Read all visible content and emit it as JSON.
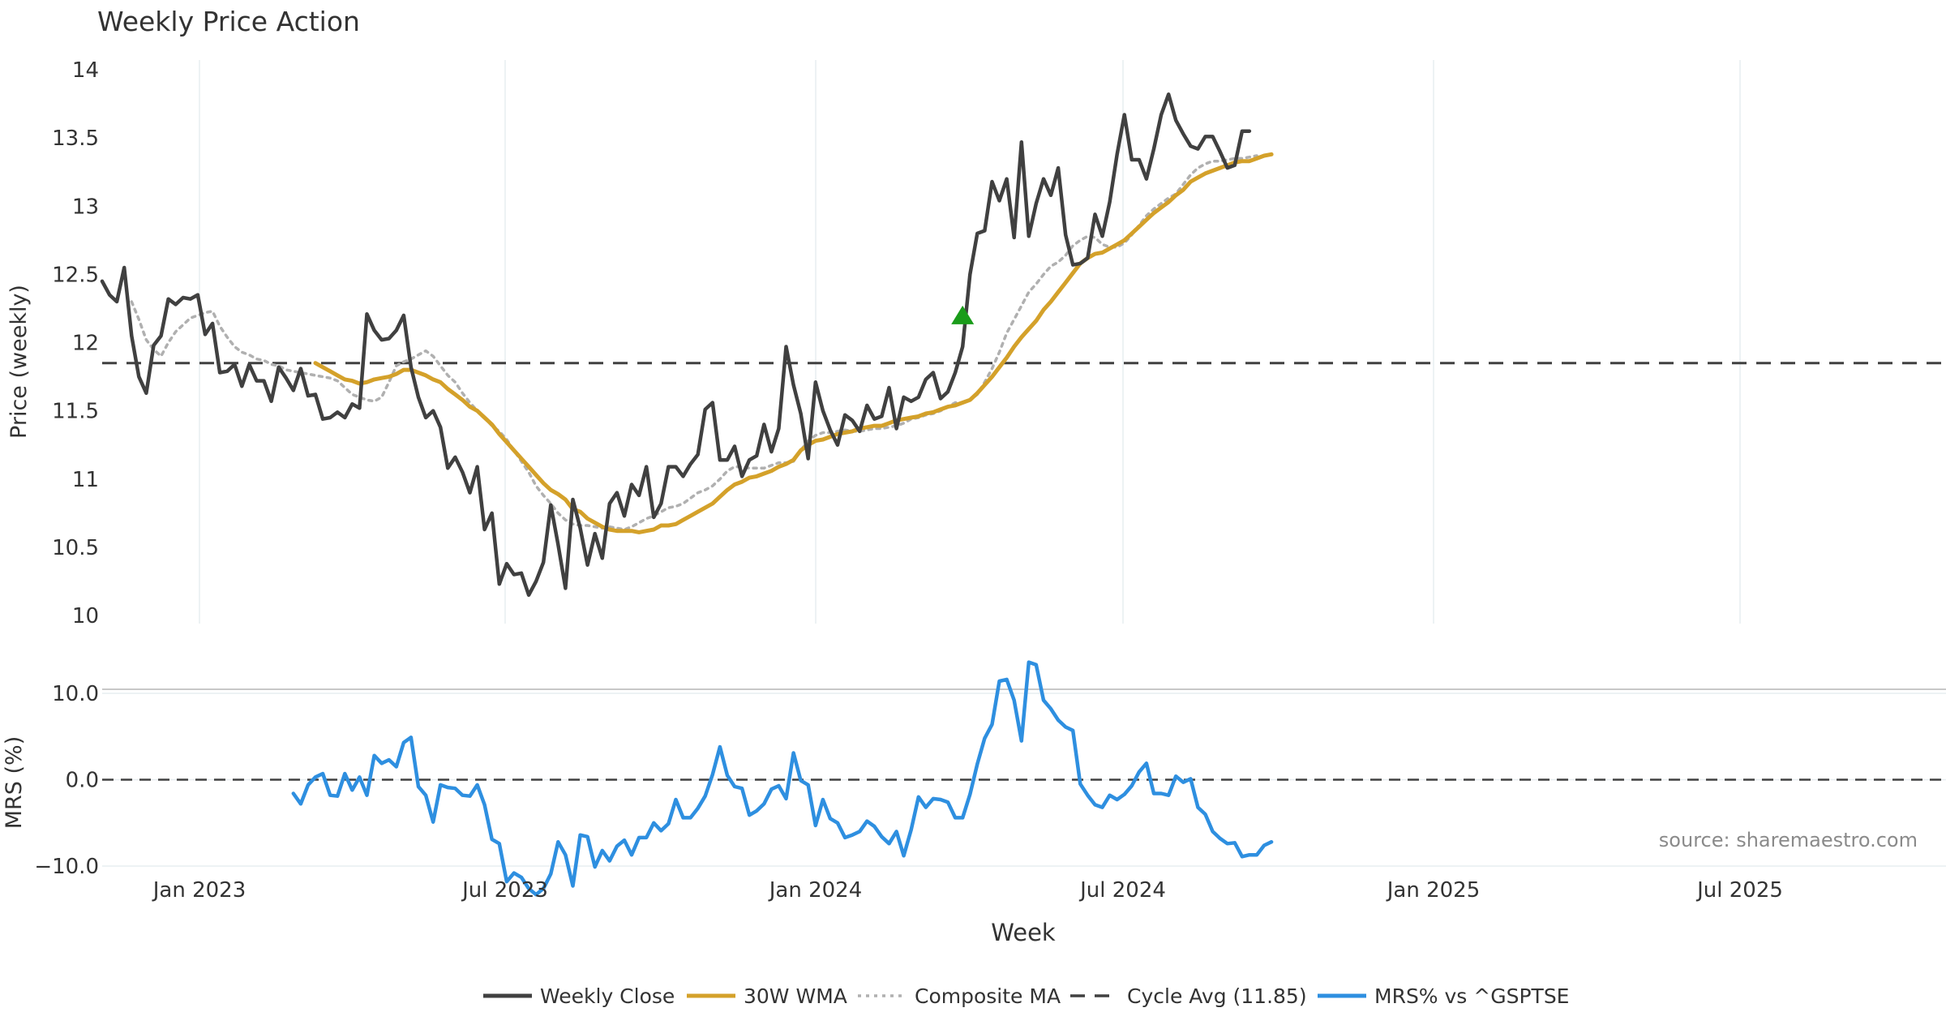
{
  "chart_data": {
    "type": "line",
    "title": "Weekly Price Action",
    "xlabel": "Week",
    "source": "source: sharemaestro.com",
    "x_ticks": [
      "Jan 2023",
      "Jul 2023",
      "Jan 2024",
      "Jul 2024",
      "Jan 2025",
      "Jul 2025"
    ],
    "price_panel": {
      "ylabel": "Price (weekly)",
      "ylim": [
        10,
        14
      ],
      "yticks": [
        "10",
        "10.5",
        "11",
        "11.5",
        "12",
        "12.5",
        "13",
        "13.5",
        "14"
      ],
      "cycle_avg": 11.85,
      "series": [
        {
          "name": "Weekly Close",
          "color": "#404040",
          "values": [
            12.45,
            12.35,
            12.3,
            12.55,
            12.05,
            11.75,
            11.63,
            11.98,
            12.05,
            12.32,
            12.28,
            12.33,
            12.32,
            12.35,
            12.06,
            12.14,
            11.78,
            11.79,
            11.84,
            11.68,
            11.84,
            11.72,
            11.72,
            11.57,
            11.82,
            11.74,
            11.65,
            11.81,
            11.61,
            11.62,
            11.44,
            11.45,
            11.49,
            11.45,
            11.55,
            11.52,
            12.21,
            12.09,
            12.02,
            12.03,
            12.09,
            12.2,
            11.82,
            11.6,
            11.45,
            11.5,
            11.38,
            11.08,
            11.16,
            11.05,
            10.9,
            11.09,
            10.63,
            10.75,
            10.23,
            10.38,
            10.3,
            10.31,
            10.15,
            10.25,
            10.39,
            10.81,
            10.52,
            10.2,
            10.85,
            10.64,
            10.37,
            10.6,
            10.42,
            10.82,
            10.9,
            10.73,
            10.96,
            10.88,
            11.09,
            10.72,
            10.82,
            11.09,
            11.09,
            11.02,
            11.11,
            11.18,
            11.51,
            11.56,
            11.14,
            11.14,
            11.24,
            11.02,
            11.14,
            11.17,
            11.4,
            11.2,
            11.37,
            11.97,
            11.69,
            11.48,
            11.15,
            11.71,
            11.5,
            11.36,
            11.25,
            11.47,
            11.43,
            11.35,
            11.54,
            11.44,
            11.46,
            11.67,
            11.37,
            11.6,
            11.57,
            11.6,
            11.73,
            11.78,
            11.59,
            11.64,
            11.78,
            11.97,
            12.5,
            12.8,
            12.82,
            13.18,
            13.04,
            13.2,
            12.77,
            13.47,
            12.78,
            13.02,
            13.2,
            13.08,
            13.28,
            12.79,
            12.57,
            12.58,
            12.62,
            12.94,
            12.78,
            13.03,
            13.38,
            13.67,
            13.34,
            13.34,
            13.2,
            13.42,
            13.67,
            13.82,
            13.63,
            13.53,
            13.44,
            13.42,
            13.51,
            13.51,
            13.4,
            13.28,
            13.3,
            13.55,
            13.55
          ]
        },
        {
          "name": "30W WMA",
          "color": "#d4a12a",
          "start_index": 29,
          "values": [
            11.85,
            11.82,
            11.79,
            11.76,
            11.73,
            11.72,
            11.7,
            11.71,
            11.73,
            11.74,
            11.75,
            11.77,
            11.8,
            11.8,
            11.78,
            11.76,
            11.73,
            11.71,
            11.66,
            11.62,
            11.58,
            11.53,
            11.5,
            11.45,
            11.4,
            11.33,
            11.27,
            11.21,
            11.15,
            11.09,
            11.03,
            10.97,
            10.92,
            10.89,
            10.85,
            10.78,
            10.76,
            10.71,
            10.68,
            10.65,
            10.63,
            10.62,
            10.62,
            10.62,
            10.61,
            10.62,
            10.63,
            10.66,
            10.66,
            10.67,
            10.7,
            10.73,
            10.76,
            10.79,
            10.82,
            10.87,
            10.92,
            10.96,
            10.98,
            11.01,
            11.02,
            11.04,
            11.06,
            11.09,
            11.11,
            11.14,
            11.21,
            11.25,
            11.28,
            11.29,
            11.31,
            11.33,
            11.34,
            11.35,
            11.37,
            11.38,
            11.39,
            11.39,
            11.41,
            11.43,
            11.44,
            11.45,
            11.46,
            11.48,
            11.49,
            11.51,
            11.53,
            11.54,
            11.56,
            11.58,
            11.63,
            11.69,
            11.75,
            11.82,
            11.89,
            11.97,
            12.04,
            12.1,
            12.16,
            12.24,
            12.3,
            12.37,
            12.44,
            12.51,
            12.58,
            12.62,
            12.65,
            12.66,
            12.69,
            12.72,
            12.75,
            12.8,
            12.85,
            12.9,
            12.95,
            12.99,
            13.03,
            13.08,
            13.12,
            13.18,
            13.21,
            13.24,
            13.26,
            13.28,
            13.3,
            13.32,
            13.33,
            13.33,
            13.35,
            13.37,
            13.38
          ]
        },
        {
          "name": "Composite MA",
          "color": "#b0b0b0",
          "start_index": 4,
          "values": [
            12.3,
            12.17,
            12.02,
            11.95,
            11.9,
            12.0,
            12.08,
            12.13,
            12.18,
            12.2,
            12.22,
            12.23,
            12.12,
            12.04,
            11.97,
            11.93,
            11.91,
            11.88,
            11.87,
            11.84,
            11.83,
            11.8,
            11.79,
            11.78,
            11.77,
            11.76,
            11.75,
            11.74,
            11.72,
            11.67,
            11.62,
            11.6,
            11.58,
            11.57,
            11.6,
            11.71,
            11.83,
            11.86,
            11.88,
            11.91,
            11.94,
            11.9,
            11.83,
            11.76,
            11.71,
            11.63,
            11.56,
            11.5,
            11.45,
            11.39,
            11.35,
            11.29,
            11.21,
            11.13,
            11.05,
            10.95,
            10.88,
            10.82,
            10.75,
            10.7,
            10.67,
            10.66,
            10.66,
            10.65,
            10.64,
            10.65,
            10.64,
            10.63,
            10.65,
            10.68,
            10.71,
            10.73,
            10.76,
            10.79,
            10.8,
            10.82,
            10.86,
            10.9,
            10.92,
            10.95,
            11.0,
            11.06,
            11.09,
            11.09,
            11.08,
            11.08,
            11.08,
            11.1,
            11.12,
            11.12,
            11.13,
            11.21,
            11.28,
            11.32,
            11.34,
            11.34,
            11.35,
            11.36,
            11.35,
            11.35,
            11.36,
            11.37,
            11.37,
            11.38,
            11.39,
            11.41,
            11.44,
            11.45,
            11.47,
            11.48,
            11.5,
            11.53,
            11.56,
            11.56,
            11.58,
            11.62,
            11.71,
            11.81,
            11.93,
            12.07,
            12.17,
            12.27,
            12.37,
            12.43,
            12.5,
            12.56,
            12.59,
            12.64,
            12.71,
            12.75,
            12.78,
            12.77,
            12.72,
            12.7,
            12.7,
            12.73,
            12.79,
            12.86,
            12.93,
            12.98,
            13.02,
            13.06,
            13.09,
            13.16,
            13.23,
            13.28,
            13.31,
            13.33,
            13.33,
            13.34,
            13.35,
            13.35,
            13.36,
            13.37
          ]
        }
      ],
      "signal_marker": {
        "shape": "triangle-up",
        "index": 117,
        "value": 12.2,
        "color": "#1a9c1a"
      }
    },
    "mrs_panel": {
      "ylabel": "MRS (%)",
      "ylim": [
        -13,
        13
      ],
      "yticks": [
        "10.0",
        "0.0",
        "−10.0"
      ],
      "zero_line": 0,
      "series": [
        {
          "name": "MRS% vs ^GSPTSE",
          "color": "#2e8fe0",
          "start_index": 26,
          "values": [
            -1.6,
            -2.8,
            -0.6,
            0.3,
            0.7,
            -1.8,
            -1.9,
            0.7,
            -1.2,
            0.3,
            -1.8,
            2.8,
            1.9,
            2.3,
            1.5,
            4.3,
            4.9,
            -0.8,
            -1.8,
            -4.9,
            -0.6,
            -0.9,
            -1.0,
            -1.8,
            -1.9,
            -0.6,
            -2.9,
            -6.9,
            -7.4,
            -11.8,
            -10.8,
            -11.3,
            -12.6,
            -13.3,
            -12.6,
            -10.9,
            -7.2,
            -8.7,
            -12.3,
            -6.4,
            -6.6,
            -10.1,
            -8.2,
            -9.4,
            -7.7,
            -7.0,
            -8.7,
            -6.7,
            -6.7,
            -5.0,
            -5.9,
            -5.1,
            -2.3,
            -4.4,
            -4.4,
            -3.3,
            -1.9,
            0.6,
            3.8,
            0.5,
            -0.8,
            -1.0,
            -4.1,
            -3.6,
            -2.8,
            -1.1,
            -0.7,
            -2.2,
            3.1,
            -0.1,
            -0.6,
            -5.3,
            -2.3,
            -4.5,
            -5.0,
            -6.7,
            -6.4,
            -6.0,
            -4.8,
            -5.4,
            -6.6,
            -7.4,
            -6.0,
            -8.8,
            -5.8,
            -2.0,
            -3.2,
            -2.2,
            -2.3,
            -2.6,
            -4.4,
            -4.4,
            -1.7,
            1.8,
            4.8,
            6.4,
            11.4,
            11.6,
            9.2,
            4.5,
            13.6,
            13.3,
            9.2,
            8.2,
            6.9,
            6.1,
            5.7,
            -0.5,
            -1.8,
            -2.9,
            -3.2,
            -1.8,
            -2.3,
            -1.7,
            -0.7,
            0.9,
            1.9,
            -1.6,
            -1.6,
            -1.8,
            0.4,
            -0.3,
            0.1,
            -3.2,
            -4.0,
            -6.0,
            -6.8,
            -7.4,
            -7.3,
            -8.9,
            -8.7,
            -8.7,
            -7.6,
            -7.2
          ]
        }
      ]
    },
    "legend": {
      "position": "bottom-center",
      "items": [
        {
          "label": "Weekly Close",
          "color": "#404040",
          "style": "solid"
        },
        {
          "label": "30W WMA",
          "color": "#d4a12a",
          "style": "solid"
        },
        {
          "label": "Composite MA",
          "color": "#b0b0b0",
          "style": "dotted"
        },
        {
          "label": "Cycle Avg (11.85)",
          "color": "#404040",
          "style": "dashed"
        },
        {
          "label": "MRS% vs ^GSPTSE",
          "color": "#2e8fe0",
          "style": "solid"
        }
      ]
    }
  }
}
